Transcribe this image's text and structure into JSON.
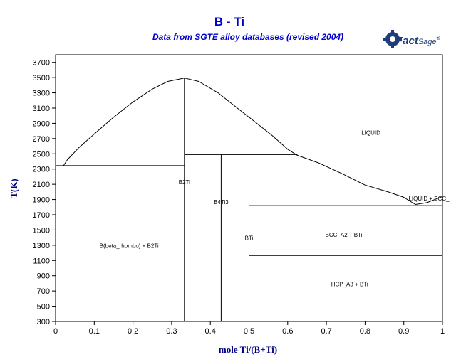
{
  "chart_data": {
    "type": "line",
    "title": "B - Ti",
    "subtitle": "Data from SGTE alloy databases (revised 2004)",
    "brand": {
      "mark": "Fact",
      "suffix": "Sage",
      "reg": "®"
    },
    "xlabel": "mole Ti/(B+Ti)",
    "ylabel": "T(K)",
    "xlim": [
      0,
      1
    ],
    "ylim": [
      300,
      3800
    ],
    "x_ticks": [
      0,
      0.1,
      0.2,
      0.3,
      0.4,
      0.5,
      0.6,
      0.7,
      0.8,
      0.9,
      1
    ],
    "x_tick_labels": [
      "0",
      "0.1",
      "0.2",
      "0.3",
      "0.4",
      "0.5",
      "0.6",
      "0.7",
      "0.8",
      "0.9",
      "1"
    ],
    "y_ticks": [
      300,
      500,
      700,
      900,
      1100,
      1300,
      1500,
      1700,
      1900,
      2100,
      2300,
      2500,
      2700,
      2900,
      3100,
      3300,
      3500,
      3700
    ],
    "y_tick_labels": [
      "300",
      "500",
      "700",
      "900",
      "1100",
      "1300",
      "1500",
      "1700",
      "1900",
      "2100",
      "2300",
      "2500",
      "2700",
      "2900",
      "3100",
      "3300",
      "3500",
      "3700"
    ],
    "grid": false,
    "line_color": "#000000",
    "title_color": "#0000cc",
    "label_color": "#000080",
    "curves": [
      {
        "id": "liquidus-left",
        "points": [
          [
            0.02,
            2340
          ],
          [
            0.03,
            2420
          ],
          [
            0.06,
            2580
          ],
          [
            0.1,
            2760
          ],
          [
            0.15,
            2980
          ],
          [
            0.2,
            3180
          ],
          [
            0.25,
            3350
          ],
          [
            0.29,
            3450
          ],
          [
            0.333,
            3495
          ]
        ]
      },
      {
        "id": "liquidus-right",
        "points": [
          [
            0.333,
            3495
          ],
          [
            0.37,
            3450
          ],
          [
            0.42,
            3300
          ],
          [
            0.47,
            3100
          ],
          [
            0.52,
            2900
          ],
          [
            0.56,
            2740
          ],
          [
            0.6,
            2560
          ],
          [
            0.625,
            2480
          ]
        ]
      },
      {
        "id": "liquidus-ti-rich",
        "points": [
          [
            0.625,
            2480
          ],
          [
            0.68,
            2380
          ],
          [
            0.74,
            2240
          ],
          [
            0.8,
            2090
          ],
          [
            0.86,
            2000
          ],
          [
            0.9,
            1930
          ],
          [
            0.93,
            1835
          ],
          [
            0.96,
            1860
          ],
          [
            1.0,
            1940
          ]
        ]
      },
      {
        "id": "eutectic-b-rich",
        "points": [
          [
            0,
            2345
          ],
          [
            0.333,
            2345
          ]
        ]
      },
      {
        "id": "peritectic-b4ti3",
        "points": [
          [
            0.333,
            2490
          ],
          [
            0.625,
            2490
          ]
        ]
      },
      {
        "id": "peritectic-bti",
        "points": [
          [
            0.428,
            2470
          ],
          [
            0.625,
            2470
          ]
        ]
      },
      {
        "id": "eutectic-ti-rich",
        "points": [
          [
            0.5,
            1820
          ],
          [
            1.0,
            1820
          ]
        ]
      },
      {
        "id": "allotropic-ti",
        "points": [
          [
            0.5,
            1165
          ],
          [
            1.0,
            1165
          ]
        ]
      },
      {
        "id": "b2ti-line",
        "points": [
          [
            0.333,
            300
          ],
          [
            0.333,
            3495
          ]
        ]
      },
      {
        "id": "b4ti3-line",
        "points": [
          [
            0.428,
            300
          ],
          [
            0.428,
            2490
          ]
        ]
      },
      {
        "id": "bti-line",
        "points": [
          [
            0.5,
            300
          ],
          [
            0.5,
            2470
          ]
        ]
      }
    ],
    "annotations": [
      {
        "text": "LIQUID",
        "x": 0.815,
        "y": 2750
      },
      {
        "text": "B2Ti",
        "x": 0.333,
        "y": 2100
      },
      {
        "text": "B4Ti3",
        "x": 0.428,
        "y": 1840
      },
      {
        "text": "BTi",
        "x": 0.5,
        "y": 1370
      },
      {
        "text": "B(beta_rhombo) + B2Ti",
        "x": 0.19,
        "y": 1265
      },
      {
        "text": "BCC_A2 + BTi",
        "x": 0.745,
        "y": 1410
      },
      {
        "text": "HCP_A3 + BTi",
        "x": 0.76,
        "y": 760
      },
      {
        "text": "LIQUID + BCC_",
        "x": 0.965,
        "y": 1885
      }
    ]
  }
}
